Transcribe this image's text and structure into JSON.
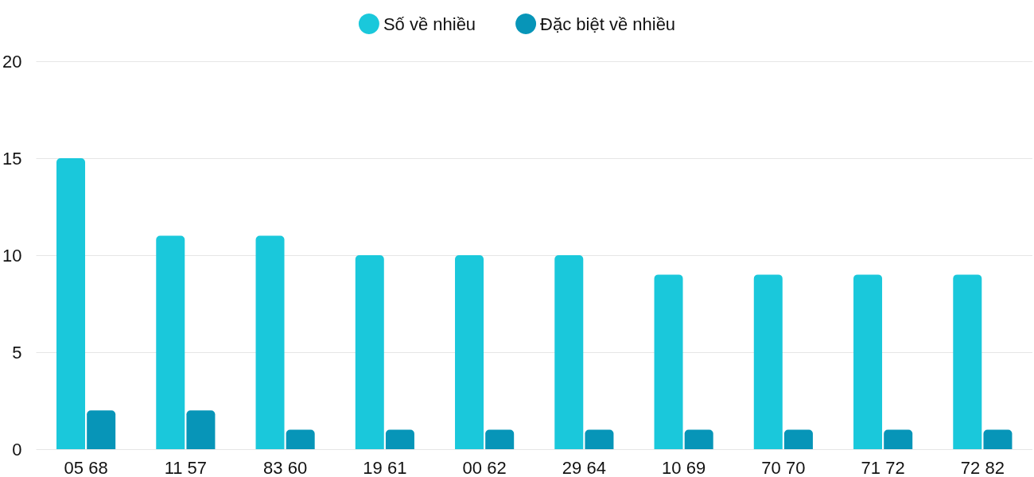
{
  "chart_data": {
    "type": "bar",
    "categories": [
      "05 68",
      "11 57",
      "83 60",
      "19 61",
      "00 62",
      "29 64",
      "10 69",
      "70 70",
      "71 72",
      "72 82"
    ],
    "series": [
      {
        "name": "Số về nhiều",
        "color": "#1ac8db",
        "values": [
          15,
          11,
          11,
          10,
          10,
          10,
          9,
          9,
          9,
          9
        ]
      },
      {
        "name": "Đặc biệt về nhiều",
        "color": "#0795b8",
        "values": [
          2,
          2,
          1,
          1,
          1,
          1,
          1,
          1,
          1,
          1
        ]
      }
    ],
    "ylim": [
      0,
      20
    ],
    "yticks": [
      0,
      5,
      10,
      15,
      20
    ],
    "grid": "y",
    "legend": "top"
  }
}
